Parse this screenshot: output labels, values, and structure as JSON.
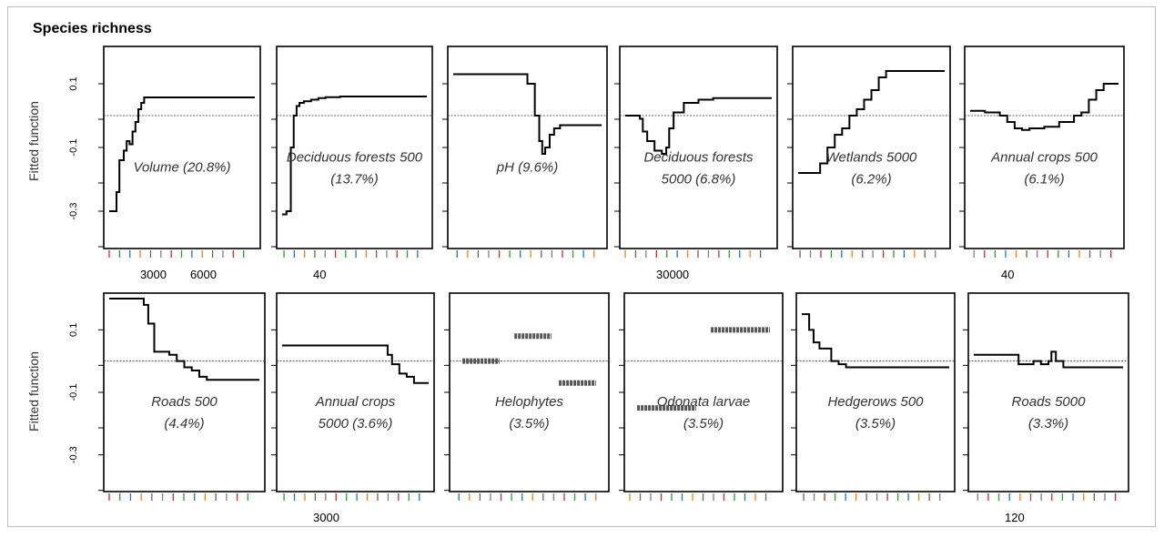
{
  "figure": {
    "title": "Species richness",
    "ylabel": "Fitted function",
    "bottom_row_tick_text": "3000"
  },
  "chart_data": [
    {
      "type": "line",
      "label": "Volume (20.8%)",
      "label_lines": [
        "Volume (20.8%)"
      ],
      "ytick_labels": [
        "0.1",
        "-0.1",
        "-0.3"
      ],
      "xtick_labels": [
        "3000",
        "6000"
      ],
      "ylim": [
        -0.4,
        0.2
      ],
      "series": [
        {
          "x": [
            0,
            0.05,
            0.07,
            0.1,
            0.12,
            0.14,
            0.16,
            0.18,
            0.2,
            0.22,
            0.24,
            0.3,
            0.5,
            1.0
          ],
          "y": [
            -0.3,
            -0.24,
            -0.14,
            -0.11,
            -0.08,
            -0.09,
            -0.05,
            -0.02,
            0.02,
            0.04,
            0.057,
            0.057,
            0.057,
            0.057
          ]
        }
      ]
    },
    {
      "type": "line",
      "label": "Deciduous forests 500 (13.7%)",
      "label_lines": [
        "Deciduous forests 500",
        "(13.7%)"
      ],
      "ytick_labels": [],
      "xtick_labels": [
        "40"
      ],
      "ylim": [
        -0.4,
        0.2
      ],
      "series": [
        {
          "x": [
            0,
            0.03,
            0.06,
            0.08,
            0.1,
            0.12,
            0.15,
            0.2,
            0.25,
            0.3,
            0.4,
            0.6,
            1.0
          ],
          "y": [
            -0.31,
            -0.3,
            -0.1,
            0.0,
            0.03,
            0.04,
            0.045,
            0.05,
            0.055,
            0.058,
            0.06,
            0.06,
            0.06
          ]
        }
      ]
    },
    {
      "type": "line",
      "label": "pH (9.6%)",
      "label_lines": [
        "pH (9.6%)"
      ],
      "ytick_labels": [],
      "xtick_labels": [],
      "ylim": [
        -0.4,
        0.2
      ],
      "series": [
        {
          "x": [
            0,
            0.35,
            0.45,
            0.5,
            0.55,
            0.58,
            0.6,
            0.62,
            0.65,
            0.68,
            0.72,
            1.0
          ],
          "y": [
            0.13,
            0.13,
            0.13,
            0.1,
            0.0,
            -0.08,
            -0.12,
            -0.1,
            -0.06,
            -0.04,
            -0.03,
            -0.03
          ]
        }
      ]
    },
    {
      "type": "line",
      "label": "Deciduous forests 5000 (6.8%)",
      "label_lines": [
        "Deciduous forests",
        "5000 (6.8%)"
      ],
      "ytick_labels": [],
      "xtick_labels": [
        "30000"
      ],
      "ylim": [
        -0.4,
        0.2
      ],
      "series": [
        {
          "x": [
            0,
            0.1,
            0.12,
            0.15,
            0.2,
            0.25,
            0.28,
            0.3,
            0.33,
            0.4,
            0.5,
            0.6,
            1.0
          ],
          "y": [
            0.0,
            -0.01,
            -0.05,
            -0.08,
            -0.11,
            -0.12,
            -0.1,
            -0.04,
            0.01,
            0.04,
            0.05,
            0.055,
            0.055
          ]
        }
      ]
    },
    {
      "type": "line",
      "label": "Wetlands 5000 (6.2%)",
      "label_lines": [
        "Wetlands 5000",
        "(6.2%)"
      ],
      "ytick_labels": [],
      "xtick_labels": [],
      "ylim": [
        -0.4,
        0.2
      ],
      "series": [
        {
          "x": [
            0,
            0.1,
            0.15,
            0.2,
            0.25,
            0.3,
            0.35,
            0.4,
            0.45,
            0.5,
            0.55,
            0.6,
            1.0
          ],
          "y": [
            -0.18,
            -0.18,
            -0.15,
            -0.1,
            -0.06,
            -0.04,
            0.0,
            0.02,
            0.05,
            0.08,
            0.12,
            0.14,
            0.14
          ]
        }
      ]
    },
    {
      "type": "line",
      "label": "Annual crops 500 (6.1%)",
      "label_lines": [
        "Annual crops 500",
        "(6.1%)"
      ],
      "ytick_labels": [],
      "xtick_labels": [
        "40"
      ],
      "ylim": [
        -0.4,
        0.2
      ],
      "series": [
        {
          "x": [
            0,
            0.1,
            0.2,
            0.25,
            0.3,
            0.35,
            0.4,
            0.5,
            0.6,
            0.7,
            0.75,
            0.8,
            0.85,
            0.9,
            1.0
          ],
          "y": [
            0.015,
            0.01,
            0.0,
            -0.02,
            -0.04,
            -0.045,
            -0.04,
            -0.035,
            -0.02,
            0.0,
            0.01,
            0.05,
            0.08,
            0.1,
            0.1
          ]
        }
      ]
    },
    {
      "type": "line",
      "label": "Roads 500 (4.4%)",
      "label_lines": [
        "Roads 500",
        "(4.4%)"
      ],
      "ytick_labels": [
        "0.1",
        "-0.1",
        "-0.3"
      ],
      "xtick_labels": [],
      "ylim": [
        -0.4,
        0.2
      ],
      "series": [
        {
          "x": [
            0,
            0.2,
            0.23,
            0.26,
            0.3,
            0.4,
            0.45,
            0.5,
            0.55,
            0.6,
            0.65,
            0.7,
            0.8,
            1.0
          ],
          "y": [
            0.2,
            0.2,
            0.18,
            0.12,
            0.03,
            0.02,
            0.0,
            -0.02,
            -0.03,
            -0.05,
            -0.06,
            -0.06,
            -0.06,
            -0.06
          ]
        }
      ]
    },
    {
      "type": "line",
      "label": "Annual crops 5000 (3.6%)",
      "label_lines": [
        "Annual crops",
        "5000 (3.6%)"
      ],
      "ytick_labels": [],
      "xtick_labels": [
        "3000"
      ],
      "ylim": [
        -0.4,
        0.2
      ],
      "series": [
        {
          "x": [
            0,
            0.6,
            0.7,
            0.72,
            0.75,
            0.8,
            0.85,
            0.9,
            1.0
          ],
          "y": [
            0.05,
            0.05,
            0.05,
            0.02,
            -0.01,
            -0.04,
            -0.05,
            -0.07,
            -0.07
          ]
        }
      ]
    },
    {
      "type": "scatter",
      "label": "Helophytes (3.5%)",
      "label_lines": [
        "Helophytes",
        "(3.5%)"
      ],
      "ytick_labels": [],
      "xtick_labels": [],
      "ylim": [
        -0.4,
        0.2
      ],
      "segments": [
        {
          "x": [
            0.05,
            0.3
          ],
          "y": 0.0
        },
        {
          "x": [
            0.4,
            0.65
          ],
          "y": 0.08
        },
        {
          "x": [
            0.7,
            0.95
          ],
          "y": -0.07
        }
      ]
    },
    {
      "type": "scatter",
      "label": "Odonata larvae (3.5%)",
      "label_lines": [
        "Odonata larvae",
        "(3.5%)"
      ],
      "ytick_labels": [],
      "xtick_labels": [],
      "ylim": [
        -0.4,
        0.2
      ],
      "segments": [
        {
          "x": [
            0.05,
            0.45
          ],
          "y": -0.15
        },
        {
          "x": [
            0.55,
            0.95
          ],
          "y": 0.1
        }
      ]
    },
    {
      "type": "line",
      "label": "Hedgerows 500 (3.5%)",
      "label_lines": [
        "Hedgerows 500",
        "(3.5%)"
      ],
      "ytick_labels": [],
      "xtick_labels": [],
      "ylim": [
        -0.4,
        0.2
      ],
      "series": [
        {
          "x": [
            0,
            0.05,
            0.08,
            0.12,
            0.2,
            0.25,
            0.3,
            0.4,
            1.0
          ],
          "y": [
            0.15,
            0.1,
            0.06,
            0.04,
            0.0,
            -0.01,
            -0.02,
            -0.02,
            -0.02
          ]
        }
      ]
    },
    {
      "type": "line",
      "label": "Roads 5000 (3.3%)",
      "label_lines": [
        "Roads 5000",
        "(3.3%)"
      ],
      "ytick_labels": [],
      "xtick_labels": [
        "120"
      ],
      "ylim": [
        -0.4,
        0.2
      ],
      "series": [
        {
          "x": [
            0,
            0.25,
            0.3,
            0.35,
            0.4,
            0.45,
            0.5,
            0.52,
            0.55,
            0.6,
            0.7,
            1.0
          ],
          "y": [
            0.02,
            0.02,
            -0.01,
            -0.01,
            0.0,
            -0.01,
            0.0,
            0.03,
            0.0,
            -0.02,
            -0.02,
            -0.02
          ]
        }
      ]
    }
  ]
}
